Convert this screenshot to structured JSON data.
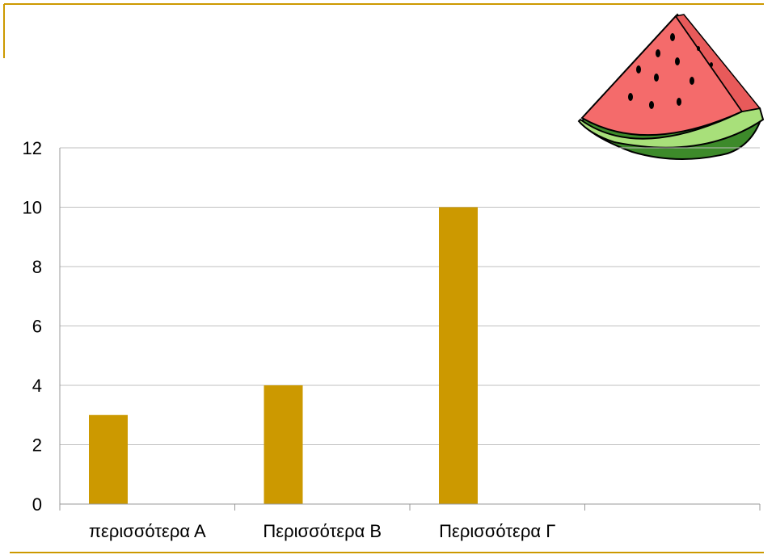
{
  "theme": {
    "accent": "#cc9900",
    "gridline": "#bfbfbf",
    "axis": "#999999"
  },
  "decoration": {
    "icon": "watermelon-slice-icon"
  },
  "chart_data": {
    "type": "bar",
    "categories": [
      "περισσότερα Α",
      "Περισσότερα Β",
      "Περισσότερα Γ",
      ""
    ],
    "values": [
      3,
      4,
      10,
      null
    ],
    "ylim": [
      0,
      12
    ],
    "yticks": [
      0,
      2,
      4,
      6,
      8,
      10,
      12
    ],
    "grid": true,
    "legend": "none",
    "bar_color": "#cc9900"
  }
}
